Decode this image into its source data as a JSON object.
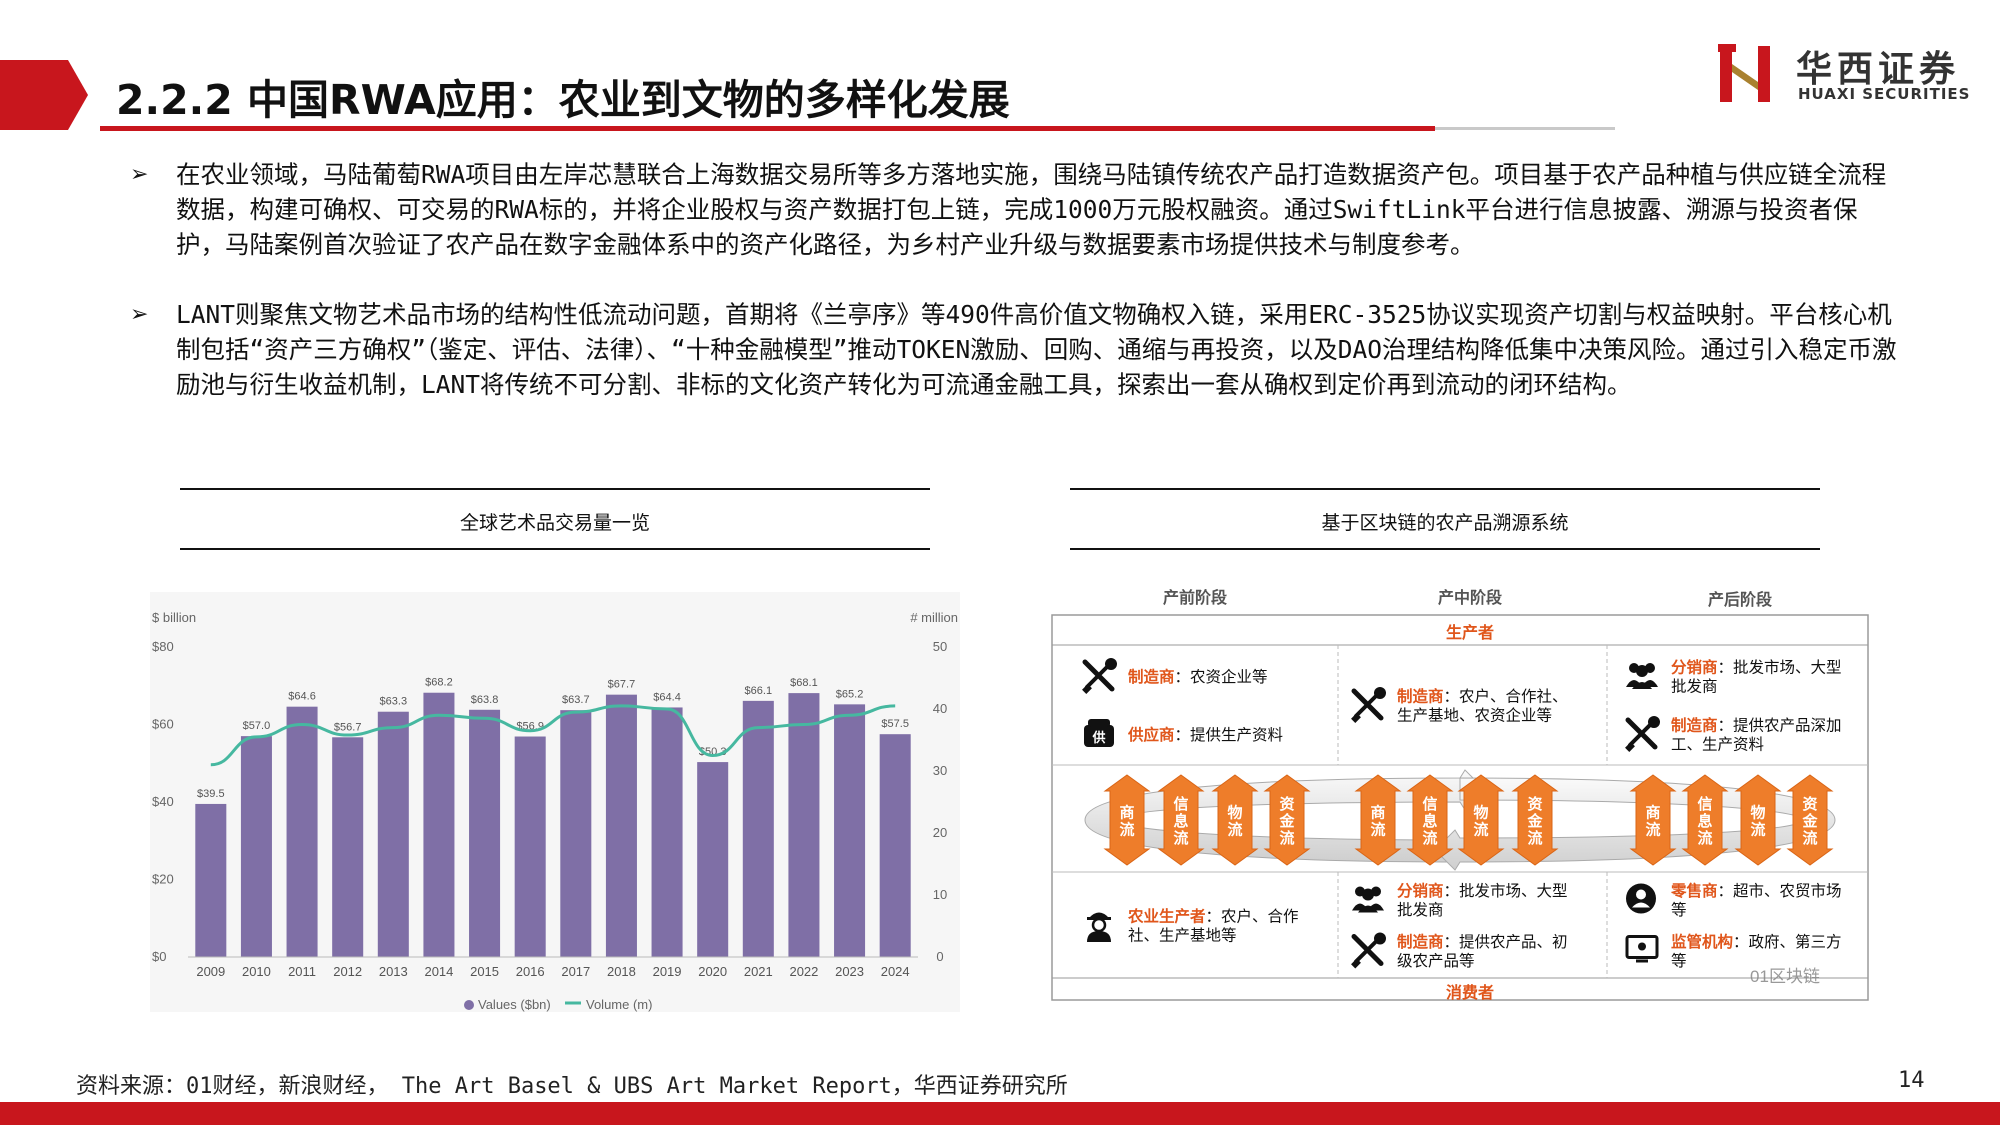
{
  "header": {
    "title": "2.2.2 中国RWA应用：农业到文物的多样化发展",
    "logo_cn": "华西证券",
    "logo_en": "HUAXI SECURITIES",
    "accent": "#c8161d"
  },
  "bullets": [
    {
      "mark": "➢",
      "text": "在农业领域，马陆葡萄RWA项目由左岸芯慧联合上海数据交易所等多方落地实施，围绕马陆镇传统农产品打造数据资产包。项目基于农产品种植与供应链全流程数据，构建可确权、可交易的RWA标的，并将企业股权与资产数据打包上链，完成1000万元股权融资。通过SwiftLink平台进行信息披露、溯源与投资者保护，马陆案例首次验证了农产品在数字金融体系中的资产化路径，为乡村产业升级与数据要素市场提供技术与制度参考。"
    },
    {
      "mark": "➢",
      "text": "LANT则聚焦文物艺术品市场的结构性低流动问题，首期将《兰亭序》等490件高价值文物确权入链，采用ERC-3525协议实现资产切割与权益映射。平台核心机制包括“资产三方确权”（鉴定、评估、法律）、“十种金融模型”推动TOKEN激励、回购、通缩与再投资，以及DAO治理结构降低集中决策风险。通过引入稳定币激励池与衍生收益机制，LANT将传统不可分割、非标的文化资产转化为可流通金融工具，探索出一套从确权到定价再到流动的闭环结构。"
    }
  ],
  "left_panel": {
    "caption": "全球艺术品交易量一览"
  },
  "right_panel": {
    "caption": "基于区块链的农产品溯源系统"
  },
  "chart_data": {
    "type": "bar",
    "categories": [
      "2009",
      "2010",
      "2011",
      "2012",
      "2013",
      "2014",
      "2015",
      "2016",
      "2017",
      "2018",
      "2019",
      "2020",
      "2021",
      "2022",
      "2023",
      "2024"
    ],
    "series": [
      {
        "name": "Values ($bn)",
        "type": "bar",
        "axis": "left",
        "color": "#7f6fa6",
        "values": [
          39.5,
          57.0,
          64.6,
          56.7,
          63.3,
          68.2,
          63.8,
          56.9,
          63.7,
          67.7,
          64.4,
          50.3,
          66.1,
          68.1,
          65.2,
          57.5
        ],
        "labels": [
          "$39.5",
          "$57.0",
          "$64.6",
          "$56.7",
          "$63.3",
          "$68.2",
          "$63.8",
          "$56.9",
          "$63.7",
          "$67.7",
          "$64.4",
          "$50.3",
          "$66.1",
          "$68.1",
          "$65.2",
          "$57.5"
        ]
      },
      {
        "name": "Volume (m)",
        "type": "line",
        "axis": "right",
        "color": "#46b8a0",
        "values": [
          31,
          35.5,
          37.5,
          35.8,
          37,
          39,
          38.5,
          36.5,
          39.5,
          40.5,
          40,
          32.5,
          37,
          37.5,
          39,
          40.5
        ]
      }
    ],
    "yleft": {
      "label": "$ billion",
      "ticks": [
        "$0",
        "$20",
        "$40",
        "$60",
        "$80"
      ],
      "range": [
        0,
        80
      ]
    },
    "yright": {
      "label": "# million",
      "ticks": [
        "0",
        "10",
        "20",
        "30",
        "40",
        "50"
      ],
      "range": [
        0,
        50
      ]
    },
    "legend": "bottom",
    "grid": false
  },
  "diagram": {
    "stages": [
      "产前阶段",
      "产中阶段",
      "产后阶段"
    ],
    "top_label": "生产者",
    "bottom_label": "消费者",
    "flows": [
      "商流",
      "信息流",
      "物流",
      "资金流"
    ],
    "top_cells": [
      [
        {
          "icon": "tools-icon",
          "role": "制造商",
          "desc": "：农资企业等"
        },
        {
          "icon": "supply-icon",
          "role": "供应商",
          "desc": "：提供生产资料"
        }
      ],
      [
        {
          "icon": "tools-icon",
          "role": "制造商",
          "desc": "：农户、合作社、生产基地、农资企业等"
        }
      ],
      [
        {
          "icon": "group-icon",
          "role": "分销商",
          "desc": "：批发市场、大型批发商"
        },
        {
          "icon": "tools-icon",
          "role": "制造商",
          "desc": "：提供农产品深加工、生产资料"
        }
      ]
    ],
    "bottom_cells": [
      [
        {
          "icon": "worker-icon",
          "role": "农业生产者",
          "desc": "：农户、合作社、生产基地等"
        }
      ],
      [
        {
          "icon": "group-icon",
          "role": "分销商",
          "desc": "：批发市场、大型批发商"
        },
        {
          "icon": "tools-icon",
          "role": "制造商",
          "desc": "：提供农产品、初级农产品等"
        }
      ],
      [
        {
          "icon": "person-icon",
          "role": "零售商",
          "desc": "：超市、农贸市场等"
        },
        {
          "icon": "monitor-icon",
          "role": "监管机构",
          "desc": "：政府、第三方等"
        }
      ]
    ],
    "watermark": "01区块链",
    "role_color": "#e0561b"
  },
  "footer": {
    "source": "资料来源：01财经，新浪财经， The Art Basel & UBS Art Market Report，华西证券研究所",
    "page": "14"
  }
}
